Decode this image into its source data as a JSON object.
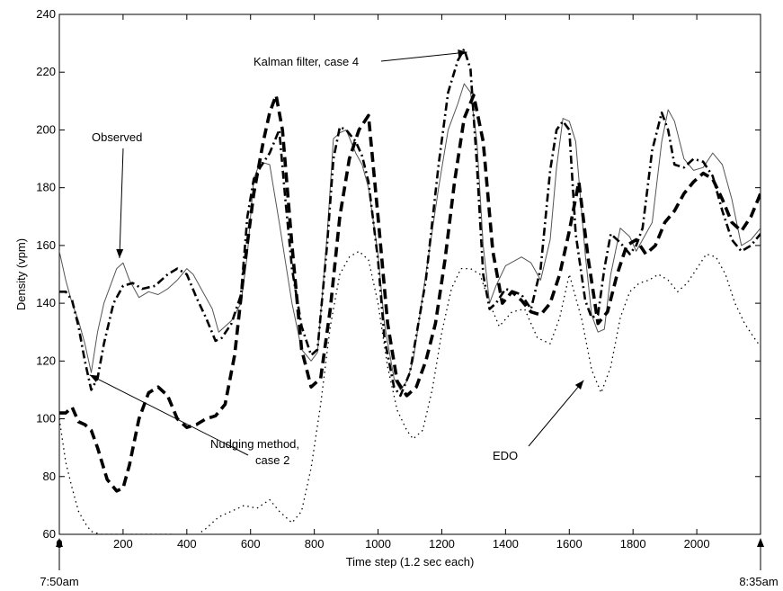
{
  "chart_data": {
    "type": "line",
    "title": "",
    "xlabel": "Time step (1.2 sec each)",
    "ylabel": "Density (vpm)",
    "xlim": [
      0,
      2200
    ],
    "ylim": [
      60,
      240
    ],
    "x_ticks": [
      0,
      200,
      400,
      600,
      800,
      1000,
      1200,
      1400,
      1600,
      1800,
      2000
    ],
    "y_ticks": [
      60,
      80,
      100,
      120,
      140,
      160,
      180,
      200,
      220,
      240
    ],
    "grid": false,
    "time_markers": [
      {
        "x": 0,
        "label": "7:50am"
      },
      {
        "x": 2200,
        "label": "8:35am"
      }
    ],
    "annotations": [
      {
        "text": "Observed",
        "target": [
          200,
          155
        ]
      },
      {
        "text": "Kalman filter, case 4",
        "target": [
          1285,
          226
        ]
      },
      {
        "text": "Nudging method,",
        "text2": "case 2",
        "target": [
          270,
          113
        ]
      },
      {
        "text": "EDO",
        "target": [
          1665,
          113
        ]
      }
    ],
    "series": [
      {
        "name": "Observed",
        "style": "thin-solid",
        "x": [
          0,
          20,
          40,
          60,
          80,
          100,
          120,
          140,
          160,
          180,
          200,
          220,
          250,
          280,
          310,
          340,
          370,
          400,
          420,
          450,
          480,
          500,
          540,
          570,
          590,
          610,
          630,
          660,
          690,
          710,
          730,
          760,
          790,
          810,
          840,
          860,
          880,
          900,
          930,
          950,
          970,
          1000,
          1020,
          1050,
          1070,
          1090,
          1110,
          1150,
          1190,
          1220,
          1250,
          1270,
          1290,
          1310,
          1330,
          1350,
          1370,
          1400,
          1450,
          1480,
          1510,
          1540,
          1560,
          1580,
          1600,
          1620,
          1650,
          1670,
          1690,
          1710,
          1730,
          1760,
          1790,
          1810,
          1830,
          1860,
          1890,
          1910,
          1930,
          1960,
          1990,
          2020,
          2050,
          2080,
          2110,
          2140,
          2170,
          2200
        ],
        "y": [
          158,
          148,
          140,
          134,
          126,
          116,
          130,
          140,
          146,
          152,
          154,
          148,
          142,
          144,
          143,
          145,
          148,
          152,
          150,
          144,
          138,
          130,
          134,
          140,
          157,
          183,
          189,
          188,
          168,
          154,
          140,
          124,
          120,
          123,
          163,
          197,
          199,
          200,
          192,
          188,
          180,
          157,
          133,
          114,
          110,
          113,
          120,
          150,
          180,
          200,
          209,
          216,
          213,
          196,
          160,
          140,
          146,
          153,
          156,
          154,
          148,
          162,
          187,
          204,
          203,
          196,
          157,
          136,
          130,
          131,
          150,
          166,
          163,
          158,
          162,
          168,
          196,
          207,
          203,
          190,
          186,
          187,
          192,
          188,
          176,
          160,
          162,
          166
        ]
      },
      {
        "name": "Kalman filter, case 4",
        "style": "dash-dot",
        "x": [
          0,
          20,
          40,
          60,
          80,
          100,
          120,
          140,
          170,
          200,
          230,
          260,
          300,
          340,
          370,
          400,
          430,
          460,
          490,
          510,
          540,
          570,
          590,
          610,
          630,
          660,
          690,
          710,
          730,
          760,
          790,
          810,
          840,
          860,
          880,
          900,
          930,
          950,
          970,
          1000,
          1020,
          1050,
          1070,
          1100,
          1150,
          1190,
          1220,
          1250,
          1270,
          1290,
          1310,
          1330,
          1350,
          1370,
          1400,
          1450,
          1480,
          1510,
          1540,
          1560,
          1580,
          1600,
          1620,
          1650,
          1670,
          1690,
          1710,
          1730,
          1760,
          1790,
          1810,
          1830,
          1860,
          1890,
          1910,
          1930,
          1960,
          1990,
          2020,
          2050,
          2080,
          2110,
          2140,
          2170,
          2200
        ],
        "y": [
          144,
          144,
          141,
          132,
          120,
          110,
          114,
          126,
          140,
          146,
          147,
          145,
          146,
          150,
          152,
          150,
          142,
          135,
          127,
          128,
          133,
          143,
          170,
          183,
          187,
          192,
          200,
          175,
          152,
          132,
          122,
          124,
          160,
          190,
          201,
          200,
          196,
          191,
          182,
          155,
          128,
          111,
          108,
          116,
          148,
          188,
          213,
          224,
          228,
          221,
          188,
          150,
          138,
          140,
          145,
          143,
          138,
          152,
          186,
          200,
          203,
          200,
          164,
          141,
          135,
          136,
          152,
          164,
          161,
          157,
          160,
          166,
          193,
          206,
          200,
          188,
          187,
          190,
          189,
          184,
          172,
          162,
          158,
          160,
          164
        ]
      },
      {
        "name": "Nudging method, case 2",
        "style": "thick-dash",
        "x": [
          0,
          20,
          40,
          60,
          80,
          100,
          120,
          150,
          180,
          200,
          220,
          250,
          280,
          310,
          340,
          370,
          400,
          430,
          460,
          490,
          520,
          550,
          580,
          610,
          640,
          660,
          680,
          700,
          730,
          760,
          790,
          820,
          850,
          880,
          910,
          940,
          970,
          1000,
          1030,
          1060,
          1090,
          1120,
          1150,
          1180,
          1210,
          1240,
          1270,
          1300,
          1330,
          1360,
          1390,
          1420,
          1450,
          1480,
          1510,
          1540,
          1570,
          1600,
          1630,
          1660,
          1690,
          1720,
          1750,
          1780,
          1810,
          1840,
          1870,
          1900,
          1930,
          1960,
          1990,
          2020,
          2050,
          2080,
          2110,
          2140,
          2170,
          2200
        ],
        "y": [
          102,
          102,
          104,
          99,
          98,
          96,
          90,
          79,
          75,
          76,
          84,
          100,
          109,
          111,
          108,
          100,
          97,
          98,
          100,
          101,
          105,
          122,
          152,
          178,
          196,
          206,
          212,
          200,
          160,
          124,
          111,
          114,
          138,
          170,
          190,
          200,
          205,
          170,
          133,
          113,
          108,
          111,
          120,
          133,
          155,
          182,
          204,
          212,
          196,
          158,
          140,
          144,
          141,
          137,
          136,
          140,
          150,
          165,
          182,
          155,
          133,
          137,
          150,
          160,
          162,
          157,
          160,
          168,
          172,
          178,
          182,
          185,
          183,
          176,
          168,
          165,
          170,
          178
        ]
      },
      {
        "name": "EDO",
        "style": "dotted",
        "x": [
          0,
          20,
          40,
          60,
          80,
          100,
          130,
          170,
          210,
          260,
          310,
          360,
          410,
          460,
          500,
          540,
          580,
          620,
          660,
          690,
          730,
          760,
          790,
          820,
          850,
          880,
          910,
          940,
          970,
          1000,
          1030,
          1060,
          1090,
          1110,
          1140,
          1170,
          1200,
          1230,
          1260,
          1290,
          1320,
          1350,
          1380,
          1420,
          1460,
          1500,
          1540,
          1570,
          1600,
          1640,
          1670,
          1700,
          1730,
          1760,
          1790,
          1820,
          1850,
          1880,
          1910,
          1940,
          1970,
          2000,
          2030,
          2060,
          2090,
          2120,
          2150,
          2180,
          2200
        ],
        "y": [
          100,
          85,
          76,
          68,
          64,
          61,
          60,
          60,
          60,
          60,
          60,
          60,
          58,
          62,
          66,
          68,
          70,
          69,
          72,
          68,
          64,
          68,
          83,
          105,
          132,
          150,
          156,
          158,
          155,
          140,
          118,
          103,
          96,
          93,
          96,
          110,
          130,
          145,
          152,
          152,
          150,
          140,
          132,
          137,
          138,
          128,
          126,
          135,
          150,
          134,
          117,
          109,
          118,
          135,
          144,
          147,
          148,
          150,
          148,
          144,
          147,
          152,
          157,
          156,
          150,
          140,
          133,
          128,
          125
        ]
      }
    ]
  }
}
